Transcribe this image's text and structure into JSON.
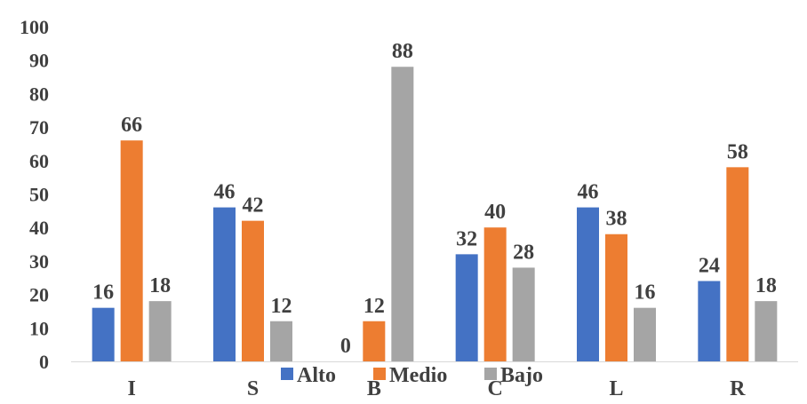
{
  "chart_data": {
    "type": "bar",
    "categories": [
      "I",
      "S",
      "B",
      "C",
      "L",
      "R"
    ],
    "series": [
      {
        "name": "Alto",
        "values": [
          16,
          46,
          0,
          32,
          46,
          24
        ],
        "color": "#4472C4"
      },
      {
        "name": "Medio",
        "values": [
          66,
          42,
          12,
          40,
          38,
          58
        ],
        "color": "#ED7D31"
      },
      {
        "name": "Bajo",
        "values": [
          18,
          12,
          88,
          28,
          16,
          18
        ],
        "color": "#A5A5A5"
      }
    ],
    "y_ticks": [
      "0",
      "10",
      "20",
      "30",
      "40",
      "50",
      "60",
      "70",
      "80",
      "90",
      "100"
    ],
    "ylim": [
      0,
      100
    ],
    "grid": false,
    "legend_position": "bottom",
    "title": "",
    "xlabel": "",
    "ylabel": ""
  }
}
